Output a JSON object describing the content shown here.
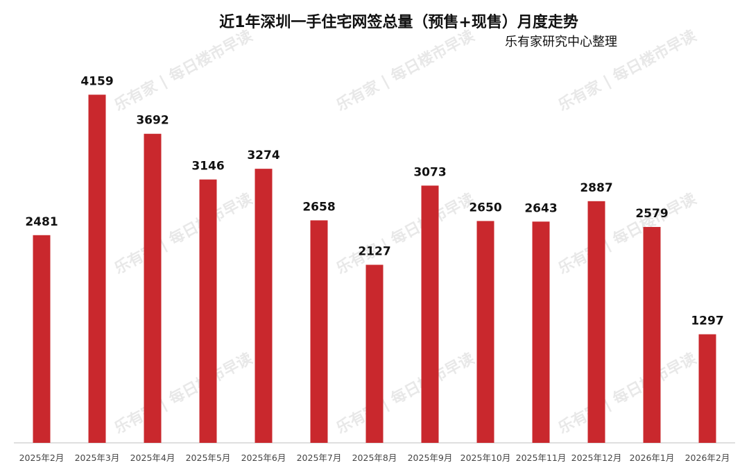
{
  "chart_data": {
    "type": "bar",
    "title": "近1年深圳一手住宅网签总量（预售+现售）月度走势",
    "subtitle": "乐有家研究中心整理",
    "categories": [
      "2025年2月",
      "2025年3月",
      "2025年4月",
      "2025年5月",
      "2025年6月",
      "2025年7月",
      "2025年8月",
      "2025年9月",
      "2025年10月",
      "2025年11月",
      "2025年12月",
      "2026年1月",
      "2026年2月"
    ],
    "values": [
      2481,
      4159,
      3692,
      3146,
      3274,
      2658,
      2127,
      3073,
      2650,
      2643,
      2887,
      2579,
      1297
    ],
    "ylim": [
      0,
      4500
    ],
    "xlabel": "",
    "ylabel": "",
    "grid": false,
    "bar_color": "#c9282d"
  },
  "watermark": {
    "brand": "乐有家",
    "text": "每日楼市早读"
  }
}
